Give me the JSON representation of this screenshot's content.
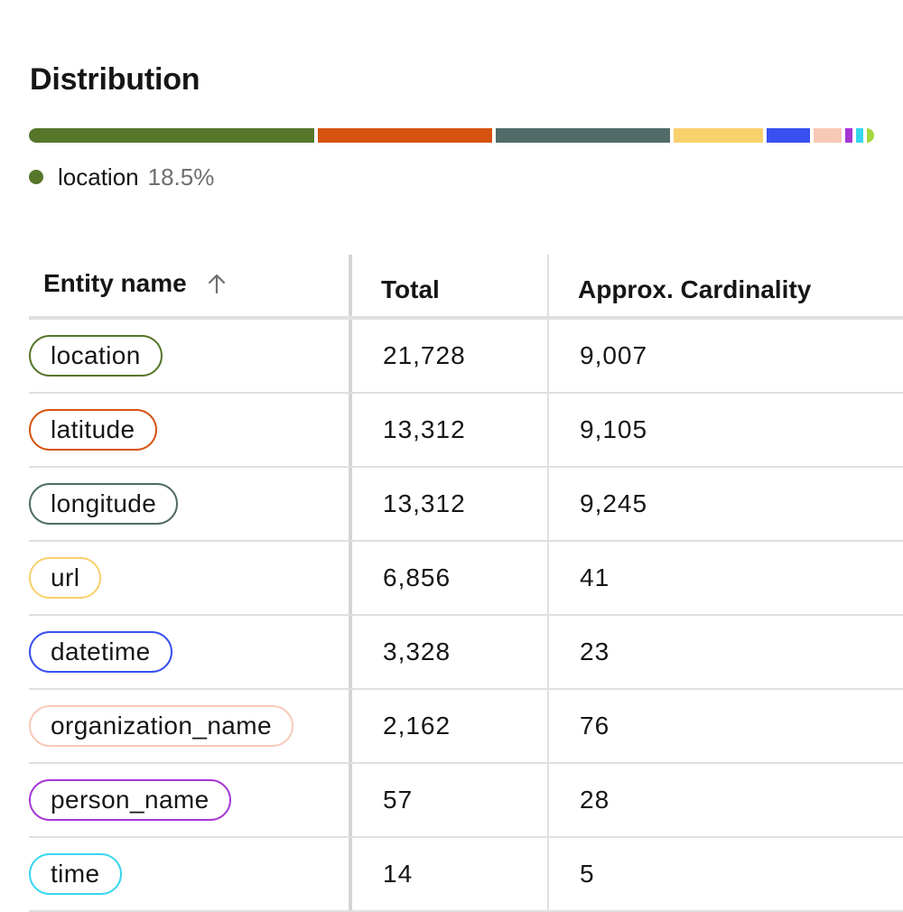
{
  "page": {
    "title": "Distribution"
  },
  "distribution": {
    "segments": [
      {
        "entity": "location",
        "fraction": 0.185,
        "color": "#56762a"
      },
      {
        "entity": "latitude",
        "fraction": 0.113,
        "color": "#d5530f"
      },
      {
        "entity": "longitude",
        "fraction": 0.113,
        "color": "#506b68"
      },
      {
        "entity": "url",
        "fraction": 0.058,
        "color": "#f8d16d"
      },
      {
        "entity": "datetime",
        "fraction": 0.028,
        "color": "#3750ef"
      },
      {
        "entity": "organization_name",
        "fraction": 0.018,
        "color": "#f9c9b8"
      },
      {
        "entity": "person_name",
        "fraction": 0.0005,
        "color": "#a536d4"
      },
      {
        "entity": "time",
        "fraction": 0.0001,
        "color": "#38d6ee"
      },
      {
        "entity": "other",
        "fraction": 0.0001,
        "color": "#a6d63e"
      }
    ],
    "legend": {
      "label": "location",
      "percent": "18.5%",
      "color": "#56762a"
    }
  },
  "table": {
    "headers": {
      "name": "Entity name",
      "total": "Total",
      "cardinality": "Approx. Cardinality",
      "sort_icon": "arrow-up-icon"
    },
    "rows": [
      {
        "name": "location",
        "total": "21,728",
        "cardinality": "9,007",
        "color": "#56762a"
      },
      {
        "name": "latitude",
        "total": "13,312",
        "cardinality": "9,105",
        "color": "#d5530f"
      },
      {
        "name": "longitude",
        "total": "13,312",
        "cardinality": "9,245",
        "color": "#506b68"
      },
      {
        "name": "url",
        "total": "6,856",
        "cardinality": "41",
        "color": "#f8d16d"
      },
      {
        "name": "datetime",
        "total": "3,328",
        "cardinality": "23",
        "color": "#3750ef"
      },
      {
        "name": "organization_name",
        "total": "2,162",
        "cardinality": "76",
        "color": "#f9c9b8"
      },
      {
        "name": "person_name",
        "total": "57",
        "cardinality": "28",
        "color": "#a536d4"
      },
      {
        "name": "time",
        "total": "14",
        "cardinality": "5",
        "color": "#38d6ee"
      }
    ]
  }
}
